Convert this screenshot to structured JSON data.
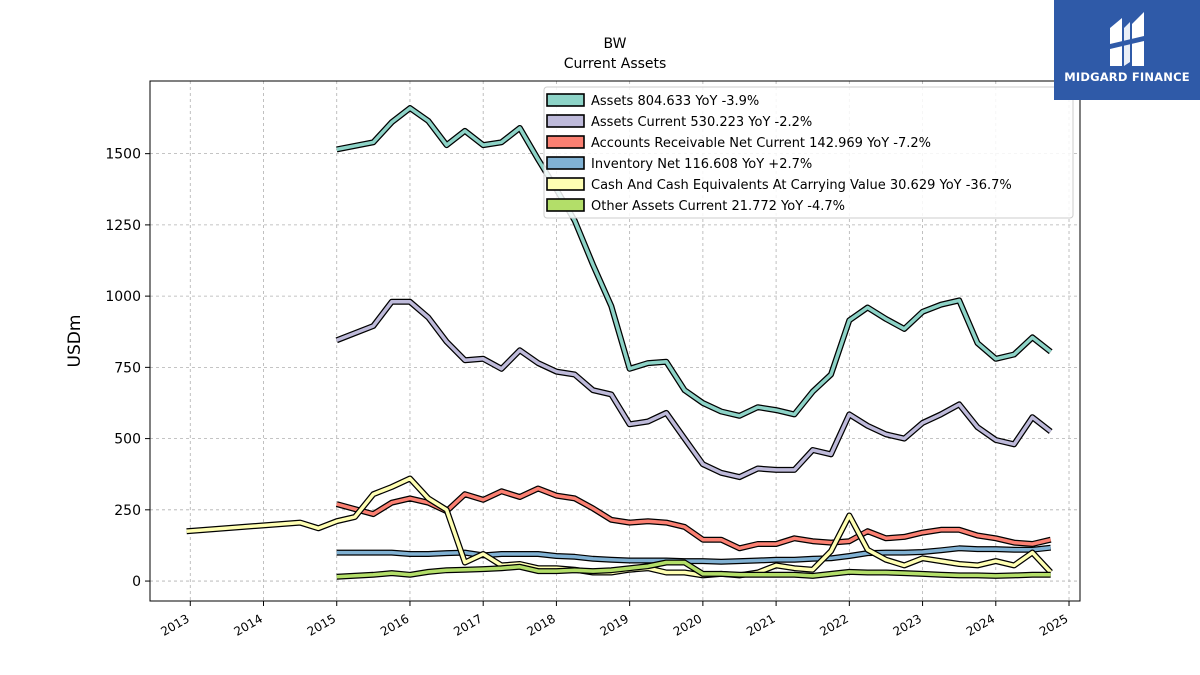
{
  "colors": {
    "background": "#ffffff",
    "grid": "#b0b0b0",
    "logo_bg": "#2f5aa8",
    "logo_fg": "#ffffff"
  },
  "logo": {
    "text": "MIDGARD FINANCE",
    "icon": "midgard-logo-icon"
  },
  "chart_data": {
    "type": "line",
    "title": "BW",
    "subtitle": "Current  Assets",
    "ylabel": "USDm",
    "xlabel": "",
    "xlim": [
      2012.45,
      2025.15
    ],
    "ylim": [
      -70,
      1755
    ],
    "x_ticks": [
      2013,
      2014,
      2015,
      2016,
      2017,
      2018,
      2019,
      2020,
      2021,
      2022,
      2023,
      2024,
      2025
    ],
    "x_tick_labels": [
      "2013",
      "2014",
      "2015",
      "2016",
      "2017",
      "2018",
      "2019",
      "2020",
      "2021",
      "2022",
      "2023",
      "2024",
      "2025"
    ],
    "y_ticks": [
      0,
      250,
      500,
      750,
      1000,
      1250,
      1500
    ],
    "y_tick_labels": [
      "0",
      "250",
      "500",
      "750",
      "1000",
      "1250",
      "1500"
    ],
    "grid": true,
    "legend_position": "top-right",
    "series": [
      {
        "name": "Assets  804.633 YoY -3.9%",
        "color": "#8dd3c7",
        "points": [
          [
            2015.0,
            1515
          ],
          [
            2015.5,
            1540
          ],
          [
            2015.75,
            1610
          ],
          [
            2016.0,
            1660
          ],
          [
            2016.25,
            1615
          ],
          [
            2016.5,
            1530
          ],
          [
            2016.75,
            1580
          ],
          [
            2017.0,
            1530
          ],
          [
            2017.25,
            1540
          ],
          [
            2017.5,
            1590
          ],
          [
            2017.75,
            1480
          ],
          [
            2018.0,
            1375
          ],
          [
            2018.25,
            1265
          ],
          [
            2018.5,
            1110
          ],
          [
            2018.75,
            965
          ],
          [
            2019.0,
            745
          ],
          [
            2019.25,
            765
          ],
          [
            2019.5,
            770
          ],
          [
            2019.75,
            670
          ],
          [
            2020.0,
            625
          ],
          [
            2020.25,
            595
          ],
          [
            2020.5,
            580
          ],
          [
            2020.75,
            610
          ],
          [
            2021.0,
            600
          ],
          [
            2021.25,
            585
          ],
          [
            2021.5,
            665
          ],
          [
            2021.75,
            725
          ],
          [
            2022.0,
            915
          ],
          [
            2022.25,
            960
          ],
          [
            2022.5,
            920
          ],
          [
            2022.75,
            885
          ],
          [
            2023.0,
            945
          ],
          [
            2023.25,
            970
          ],
          [
            2023.5,
            985
          ],
          [
            2023.75,
            835
          ],
          [
            2024.0,
            780
          ],
          [
            2024.25,
            795
          ],
          [
            2024.5,
            855
          ],
          [
            2024.75,
            805
          ]
        ]
      },
      {
        "name": "Assets Current  530.223 YoY -2.2%",
        "color": "#bebada",
        "points": [
          [
            2015.0,
            845
          ],
          [
            2015.5,
            895
          ],
          [
            2015.75,
            980
          ],
          [
            2016.0,
            980
          ],
          [
            2016.25,
            925
          ],
          [
            2016.5,
            840
          ],
          [
            2016.75,
            775
          ],
          [
            2017.0,
            780
          ],
          [
            2017.25,
            745
          ],
          [
            2017.5,
            810
          ],
          [
            2017.75,
            765
          ],
          [
            2018.0,
            735
          ],
          [
            2018.25,
            725
          ],
          [
            2018.5,
            670
          ],
          [
            2018.75,
            655
          ],
          [
            2019.0,
            550
          ],
          [
            2019.25,
            560
          ],
          [
            2019.5,
            590
          ],
          [
            2019.75,
            500
          ],
          [
            2020.0,
            410
          ],
          [
            2020.25,
            380
          ],
          [
            2020.5,
            365
          ],
          [
            2020.75,
            395
          ],
          [
            2021.0,
            390
          ],
          [
            2021.25,
            390
          ],
          [
            2021.5,
            460
          ],
          [
            2021.75,
            445
          ],
          [
            2022.0,
            585
          ],
          [
            2022.25,
            545
          ],
          [
            2022.5,
            515
          ],
          [
            2022.75,
            500
          ],
          [
            2023.0,
            555
          ],
          [
            2023.25,
            585
          ],
          [
            2023.5,
            620
          ],
          [
            2023.75,
            540
          ],
          [
            2024.0,
            495
          ],
          [
            2024.25,
            480
          ],
          [
            2024.5,
            575
          ],
          [
            2024.75,
            525
          ]
        ]
      },
      {
        "name": "Accounts Receivable Net Current  142.969 YoY -7.2%",
        "color": "#fb8072",
        "points": [
          [
            2015.0,
            270
          ],
          [
            2015.5,
            235
          ],
          [
            2015.75,
            275
          ],
          [
            2016.0,
            290
          ],
          [
            2016.25,
            275
          ],
          [
            2016.5,
            245
          ],
          [
            2016.75,
            305
          ],
          [
            2017.0,
            285
          ],
          [
            2017.25,
            315
          ],
          [
            2017.5,
            295
          ],
          [
            2017.75,
            325
          ],
          [
            2018.0,
            300
          ],
          [
            2018.25,
            290
          ],
          [
            2018.5,
            255
          ],
          [
            2018.75,
            215
          ],
          [
            2019.0,
            205
          ],
          [
            2019.25,
            210
          ],
          [
            2019.5,
            205
          ],
          [
            2019.75,
            190
          ],
          [
            2020.0,
            145
          ],
          [
            2020.25,
            145
          ],
          [
            2020.5,
            115
          ],
          [
            2020.75,
            130
          ],
          [
            2021.0,
            130
          ],
          [
            2021.25,
            150
          ],
          [
            2021.5,
            140
          ],
          [
            2021.75,
            135
          ],
          [
            2022.0,
            140
          ],
          [
            2022.25,
            175
          ],
          [
            2022.5,
            150
          ],
          [
            2022.75,
            155
          ],
          [
            2023.0,
            170
          ],
          [
            2023.25,
            180
          ],
          [
            2023.5,
            180
          ],
          [
            2023.75,
            160
          ],
          [
            2024.0,
            150
          ],
          [
            2024.25,
            135
          ],
          [
            2024.5,
            130
          ],
          [
            2024.75,
            145
          ]
        ]
      },
      {
        "name": "Inventory Net  116.608 YoY +2.7%",
        "color": "#80b1d3",
        "points": [
          [
            2015.0,
            100
          ],
          [
            2015.5,
            100
          ],
          [
            2015.75,
            100
          ],
          [
            2016.0,
            95
          ],
          [
            2016.25,
            95
          ],
          [
            2016.5,
            98
          ],
          [
            2016.75,
            100
          ],
          [
            2017.0,
            90
          ],
          [
            2017.25,
            95
          ],
          [
            2017.5,
            95
          ],
          [
            2017.75,
            95
          ],
          [
            2018.0,
            88
          ],
          [
            2018.25,
            85
          ],
          [
            2018.5,
            78
          ],
          [
            2018.75,
            75
          ],
          [
            2019.0,
            72
          ],
          [
            2019.25,
            72
          ],
          [
            2019.5,
            72
          ],
          [
            2019.75,
            70
          ],
          [
            2020.0,
            70
          ],
          [
            2020.25,
            68
          ],
          [
            2020.5,
            70
          ],
          [
            2020.75,
            72
          ],
          [
            2021.0,
            75
          ],
          [
            2021.25,
            75
          ],
          [
            2021.5,
            78
          ],
          [
            2021.75,
            80
          ],
          [
            2022.0,
            88
          ],
          [
            2022.25,
            98
          ],
          [
            2022.5,
            100
          ],
          [
            2022.75,
            100
          ],
          [
            2023.0,
            102
          ],
          [
            2023.25,
            108
          ],
          [
            2023.5,
            115
          ],
          [
            2023.75,
            112
          ],
          [
            2024.0,
            112
          ],
          [
            2024.25,
            110
          ],
          [
            2024.5,
            110
          ],
          [
            2024.75,
            117
          ]
        ]
      },
      {
        "name": "Cash And Cash Equivalents At Carrying Value  30.629 YoY -36.7%",
        "color": "#ffffb3",
        "points": [
          [
            2012.95,
            175
          ],
          [
            2014.5,
            205
          ],
          [
            2014.75,
            185
          ],
          [
            2015.0,
            210
          ],
          [
            2015.25,
            225
          ],
          [
            2015.5,
            305
          ],
          [
            2015.75,
            330
          ],
          [
            2016.0,
            360
          ],
          [
            2016.25,
            290
          ],
          [
            2016.5,
            250
          ],
          [
            2016.75,
            65
          ],
          [
            2017.0,
            95
          ],
          [
            2017.25,
            55
          ],
          [
            2017.5,
            60
          ],
          [
            2017.75,
            45
          ],
          [
            2018.0,
            45
          ],
          [
            2018.25,
            40
          ],
          [
            2018.5,
            30
          ],
          [
            2018.75,
            30
          ],
          [
            2019.0,
            40
          ],
          [
            2019.25,
            45
          ],
          [
            2019.5,
            30
          ],
          [
            2019.75,
            30
          ],
          [
            2020.0,
            20
          ],
          [
            2020.25,
            25
          ],
          [
            2020.5,
            20
          ],
          [
            2020.75,
            30
          ],
          [
            2021.0,
            55
          ],
          [
            2021.25,
            45
          ],
          [
            2021.5,
            40
          ],
          [
            2021.75,
            105
          ],
          [
            2022.0,
            230
          ],
          [
            2022.25,
            110
          ],
          [
            2022.5,
            75
          ],
          [
            2022.75,
            55
          ],
          [
            2023.0,
            80
          ],
          [
            2023.25,
            70
          ],
          [
            2023.5,
            60
          ],
          [
            2023.75,
            55
          ],
          [
            2024.0,
            70
          ],
          [
            2024.25,
            55
          ],
          [
            2024.5,
            100
          ],
          [
            2024.75,
            31
          ]
        ]
      },
      {
        "name": "Other Assets Current  21.772 YoY -4.7%",
        "color": "#b3de69",
        "points": [
          [
            2015.0,
            15
          ],
          [
            2015.5,
            22
          ],
          [
            2015.75,
            28
          ],
          [
            2016.0,
            22
          ],
          [
            2016.25,
            32
          ],
          [
            2016.5,
            38
          ],
          [
            2016.75,
            40
          ],
          [
            2017.0,
            42
          ],
          [
            2017.25,
            45
          ],
          [
            2017.5,
            50
          ],
          [
            2017.75,
            35
          ],
          [
            2018.0,
            35
          ],
          [
            2018.25,
            38
          ],
          [
            2018.5,
            35
          ],
          [
            2018.75,
            38
          ],
          [
            2019.0,
            45
          ],
          [
            2019.25,
            52
          ],
          [
            2019.5,
            65
          ],
          [
            2019.75,
            65
          ],
          [
            2020.0,
            25
          ],
          [
            2020.25,
            25
          ],
          [
            2020.5,
            22
          ],
          [
            2020.75,
            22
          ],
          [
            2021.0,
            22
          ],
          [
            2021.25,
            22
          ],
          [
            2021.5,
            18
          ],
          [
            2021.75,
            25
          ],
          [
            2022.0,
            32
          ],
          [
            2022.25,
            30
          ],
          [
            2022.5,
            30
          ],
          [
            2022.75,
            28
          ],
          [
            2023.0,
            25
          ],
          [
            2023.25,
            22
          ],
          [
            2023.5,
            20
          ],
          [
            2023.75,
            20
          ],
          [
            2024.0,
            18
          ],
          [
            2024.25,
            20
          ],
          [
            2024.5,
            22
          ],
          [
            2024.75,
            22
          ]
        ]
      }
    ]
  }
}
